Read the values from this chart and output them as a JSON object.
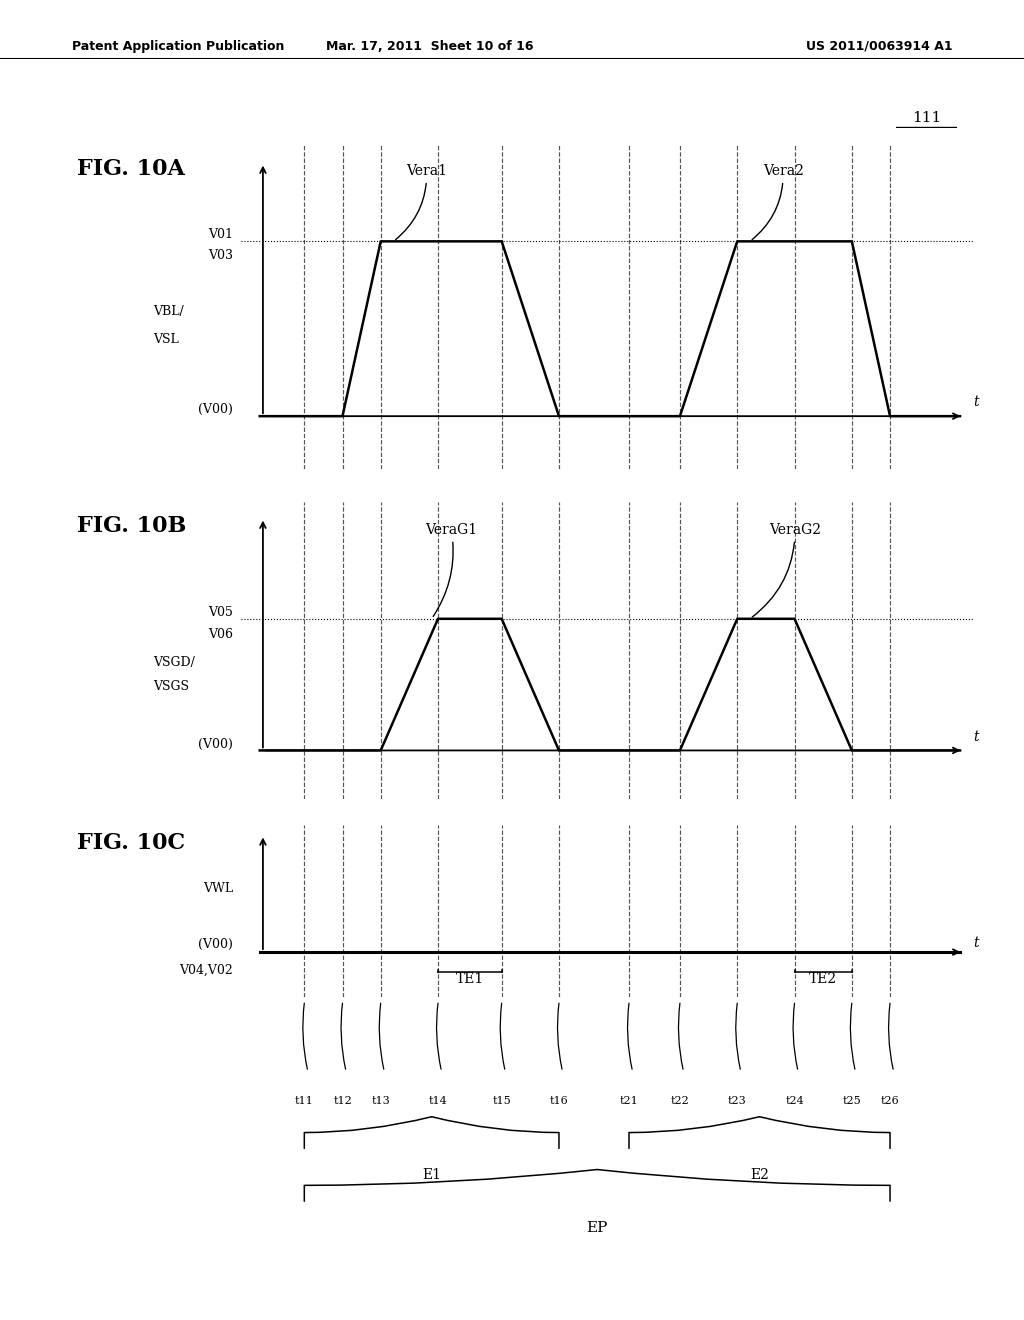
{
  "header_left": "Patent Application Publication",
  "header_mid": "Mar. 17, 2011  Sheet 10 of 16",
  "header_right": "US 2011/0063914 A1",
  "fig_label": "111",
  "figA_title": "FIG. 10A",
  "figB_title": "FIG. 10B",
  "figC_title": "FIG. 10C",
  "vera1_label": "Vera1",
  "vera2_label": "Vera2",
  "veraG1_label": "VeraG1",
  "veraG2_label": "VeraG2",
  "figA_ylabel1": "V01",
  "figA_ylabel2": "V03",
  "figA_ylabel3": "VBL/",
  "figA_ylabel4": "VSL",
  "figA_ylabel5": "(V00)",
  "figB_ylabel1": "V05",
  "figB_ylabel2": "V06",
  "figB_ylabel3": "VSGD/",
  "figB_ylabel4": "VSGS",
  "figB_ylabel5": "(V00)",
  "figC_ylabel1": "VWL",
  "figC_ylabel2": "(V00)",
  "figC_ylabel3": "V04,V02",
  "t_labels": [
    "t11",
    "t12",
    "t13",
    "t14",
    "t15",
    "t16",
    "t21",
    "t22",
    "t23",
    "t24",
    "t25",
    "t26"
  ],
  "TE1_label": "TE1",
  "TE2_label": "TE2",
  "E1_label": "E1",
  "E2_label": "E2",
  "EP_label": "EP",
  "bg_color": "#ffffff",
  "t_positions": {
    "t11": 1.0,
    "t12": 1.6,
    "t13": 2.2,
    "t14": 3.1,
    "t15": 4.1,
    "t16": 5.0,
    "t21": 6.1,
    "t22": 6.9,
    "t23": 7.8,
    "t24": 8.7,
    "t25": 9.6,
    "t26": 10.2
  },
  "xmin": 0.0,
  "xmax": 11.5,
  "figA_high": 1.0,
  "figB_high": 0.82
}
